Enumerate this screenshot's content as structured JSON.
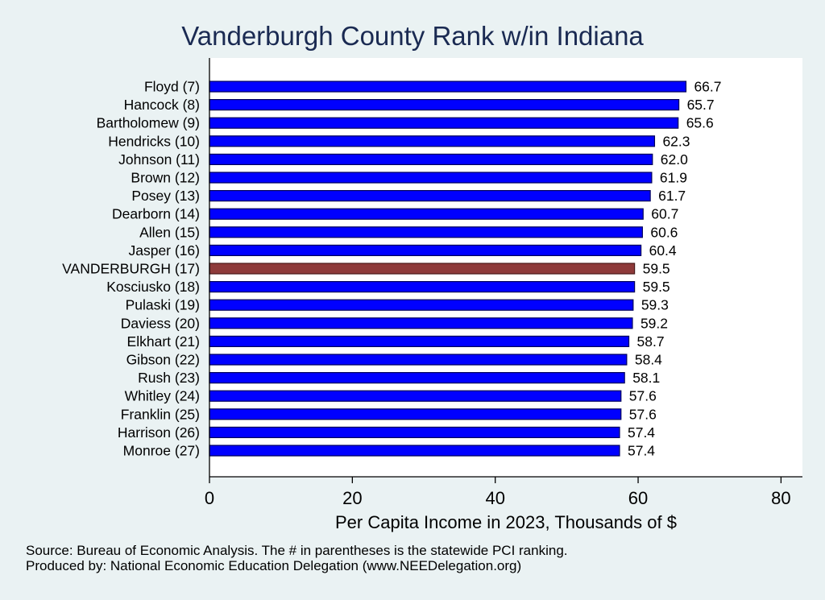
{
  "chart_data": {
    "type": "bar",
    "orientation": "horizontal",
    "title": "Vanderburgh County Rank w/in Indiana",
    "xlabel": "Per Capita Income in 2023, Thousands of $",
    "ylabel": "",
    "xlim": [
      0,
      83
    ],
    "xticks": [
      0,
      20,
      40,
      60,
      80
    ],
    "categories": [
      "Floyd  (7)",
      "Hancock  (8)",
      "Bartholomew  (9)",
      "Hendricks (10)",
      "Johnson (11)",
      "Brown (12)",
      "Posey (13)",
      "Dearborn (14)",
      "Allen (15)",
      "Jasper (16)",
      "VANDERBURGH (17)",
      "Kosciusko (18)",
      "Pulaski (19)",
      "Daviess (20)",
      "Elkhart (21)",
      "Gibson (22)",
      "Rush (23)",
      "Whitley (24)",
      "Franklin (25)",
      "Harrison (26)",
      "Monroe (27)"
    ],
    "values": [
      66.7,
      65.7,
      65.6,
      62.3,
      62.0,
      61.9,
      61.7,
      60.7,
      60.6,
      60.4,
      59.5,
      59.5,
      59.3,
      59.2,
      58.7,
      58.4,
      58.1,
      57.6,
      57.6,
      57.4,
      57.4
    ],
    "value_labels": [
      "66.7",
      "65.7",
      "65.6",
      "62.3",
      "62.0",
      "61.9",
      "61.7",
      "60.7",
      "60.6",
      "60.4",
      "59.5",
      "59.5",
      "59.3",
      "59.2",
      "58.7",
      "58.4",
      "58.1",
      "57.6",
      "57.6",
      "57.4",
      "57.4"
    ],
    "highlight_index": 10,
    "colors": {
      "bar": "#0000ff",
      "highlight": "#8e3a3a",
      "bar_edge": "#00005a",
      "highlight_edge": "#4a1a1a",
      "plot_bg": "#ffffff",
      "title": "#1a2a52"
    }
  },
  "notes": {
    "source": "Source: Bureau of Economic Analysis. The # in parentheses is the statewide PCI ranking.",
    "produced": "Produced by: National Economic Education Delegation (www.NEEDelegation.org)"
  }
}
